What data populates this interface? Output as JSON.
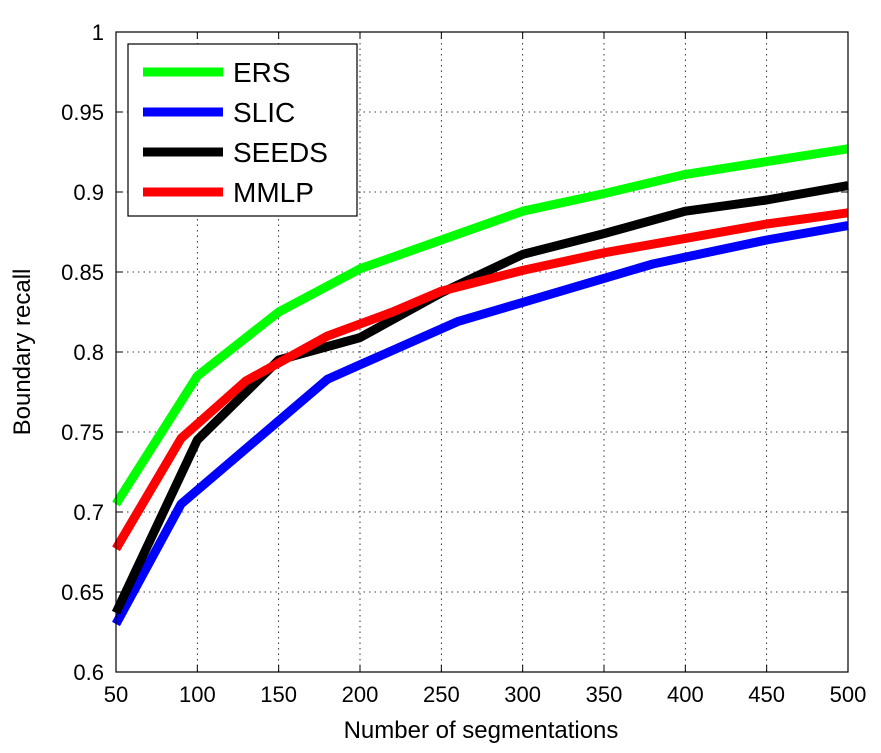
{
  "chart_data": {
    "type": "line",
    "xlabel": "Number of segmentations",
    "ylabel": "Boundary recall",
    "xlim": [
      50,
      500
    ],
    "ylim": [
      0.6,
      1
    ],
    "xticks": [
      "50",
      "100",
      "150",
      "200",
      "250",
      "300",
      "350",
      "400",
      "450",
      "500"
    ],
    "yticks": [
      "0.6",
      "0.65",
      "0.7",
      "0.75",
      "0.8",
      "0.85",
      "0.9",
      "0.95",
      "1"
    ],
    "grid": true,
    "legend_position": "top-left",
    "series": [
      {
        "name": "ERS",
        "color": "#00ff00",
        "x": [
          50,
          100,
          150,
          200,
          250,
          300,
          350,
          400,
          450,
          500
        ],
        "y": [
          0.705,
          0.785,
          0.825,
          0.852,
          0.87,
          0.888,
          0.899,
          0.911,
          0.919,
          0.927
        ]
      },
      {
        "name": "SLIC",
        "color": "#0000ff",
        "x": [
          50,
          90,
          150,
          180,
          200,
          260,
          300,
          380,
          450,
          500
        ],
        "y": [
          0.63,
          0.705,
          0.757,
          0.783,
          0.792,
          0.819,
          0.831,
          0.855,
          0.87,
          0.879
        ]
      },
      {
        "name": "SEEDS",
        "color": "#000000",
        "x": [
          50,
          100,
          150,
          200,
          250,
          300,
          350,
          400,
          450,
          500
        ],
        "y": [
          0.637,
          0.745,
          0.795,
          0.809,
          0.837,
          0.861,
          0.874,
          0.888,
          0.895,
          0.904
        ]
      },
      {
        "name": "MMLP",
        "color": "#ff0000",
        "x": [
          50,
          90,
          130,
          180,
          220,
          250,
          300,
          350,
          400,
          450,
          500
        ],
        "y": [
          0.677,
          0.746,
          0.782,
          0.81,
          0.825,
          0.838,
          0.851,
          0.862,
          0.871,
          0.88,
          0.887
        ]
      }
    ]
  }
}
